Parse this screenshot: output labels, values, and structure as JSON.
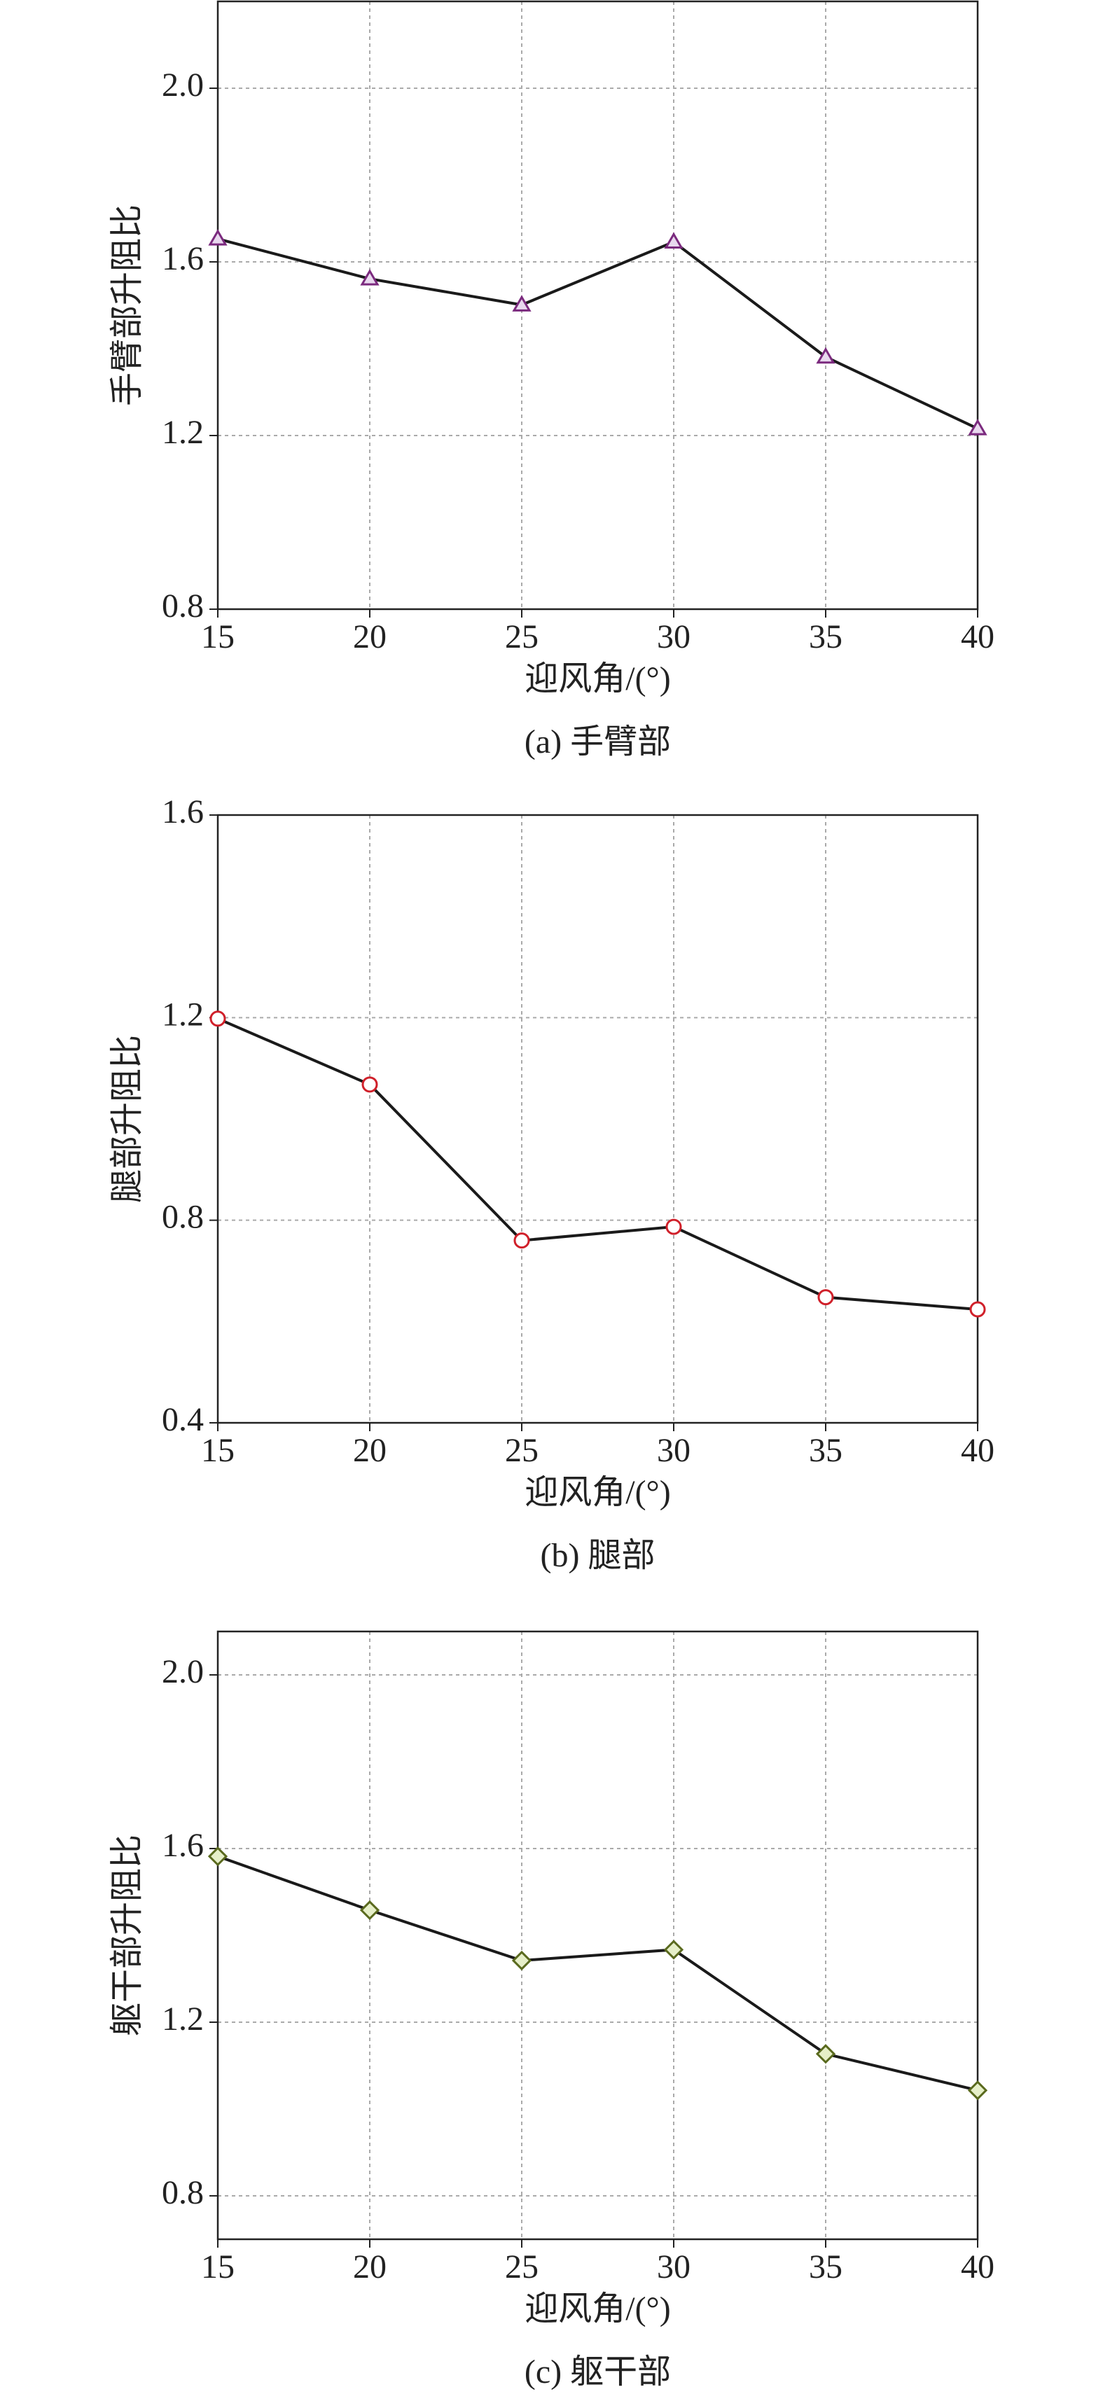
{
  "chart_data": [
    {
      "type": "line",
      "title": "(a) 手臂部",
      "xlabel": "迎风角/(°)",
      "ylabel": "手臂部升阻比",
      "x": [
        15,
        20,
        25,
        30,
        35,
        40
      ],
      "values": [
        1.653,
        1.561,
        1.501,
        1.646,
        1.381,
        1.216
      ],
      "color": "#7b2a7e",
      "fill": "#e8d8ee",
      "marker": "triangle",
      "line_color": "#1a1a1a",
      "xlim": [
        15,
        40
      ],
      "xticks": [
        15,
        20,
        25,
        30,
        35,
        40
      ],
      "ylim": [
        0.8,
        2.2
      ],
      "yticks": [
        0.8,
        1.2,
        1.6,
        {
          "value": 2,
          "label": "2.0"
        }
      ],
      "grid": true
    },
    {
      "type": "line",
      "title": "(b) 腿部",
      "xlabel": "迎风角/(°)",
      "ylabel": "腿部升阻比",
      "x": [
        15,
        20,
        25,
        30,
        35,
        40
      ],
      "values": [
        1.198,
        1.068,
        0.76,
        0.787,
        0.648,
        0.624
      ],
      "color": "#d0202a",
      "fill": "#ffffff",
      "marker": "circle",
      "line_color": "#1a1a1a",
      "xlim": [
        15,
        40
      ],
      "xticks": [
        15,
        20,
        25,
        30,
        35,
        40
      ],
      "ylim": [
        0.4,
        1.6
      ],
      "yticks": [
        0.4,
        0.8,
        1.2,
        1.6
      ],
      "grid": true
    },
    {
      "type": "line",
      "title": "(c) 躯干部",
      "xlabel": "迎风角/(°)",
      "ylabel": "躯干部升阻比",
      "x": [
        15,
        20,
        25,
        30,
        35,
        40
      ],
      "values": [
        1.582,
        1.458,
        1.342,
        1.367,
        1.127,
        1.043
      ],
      "color": "#5a6a1e",
      "fill": "#e6efc8",
      "marker": "diamond",
      "line_color": "#1a1a1a",
      "xlim": [
        15,
        40
      ],
      "xticks": [
        15,
        20,
        25,
        30,
        35,
        40
      ],
      "ylim": [
        0.7,
        2.1
      ],
      "yticks": [
        0.8,
        1.2,
        1.6,
        {
          "value": 2,
          "label": "2.0"
        }
      ],
      "grid": true
    }
  ]
}
